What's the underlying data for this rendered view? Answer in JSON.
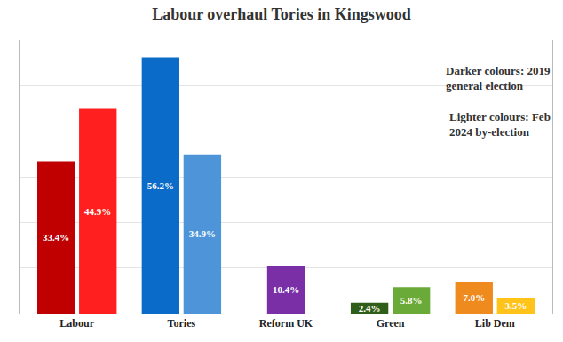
{
  "chart_data": {
    "type": "bar",
    "title": "Labour overhaul Tories in Kingswood",
    "categories": [
      "Labour",
      "Tories",
      "Reform UK",
      "Green",
      "Lib Dem"
    ],
    "series": [
      {
        "name": "Darker colours: 2019 general election",
        "values": [
          33.4,
          56.2,
          null,
          2.4,
          7.0
        ],
        "value_labels": [
          "33.4%",
          "56.2%",
          null,
          "2.4%",
          "7.0%"
        ],
        "colors": [
          "#c00000",
          "#0a6cc8",
          null,
          "#2e5e1a",
          "#ee8a1e"
        ]
      },
      {
        "name": "Lighter colours: Feb 2024 by-election",
        "values": [
          44.9,
          34.9,
          10.4,
          5.8,
          3.5
        ],
        "value_labels": [
          "44.9%",
          "34.9%",
          "10.4%",
          "5.8%",
          "3.5%"
        ],
        "colors": [
          "#ff1f1f",
          "#4d95d8",
          "#7a2fa6",
          "#6aaa38",
          "#ffc31a"
        ]
      }
    ],
    "ylim": [
      0,
      60
    ],
    "yticks": [
      0,
      10,
      20,
      30,
      40,
      50,
      60
    ],
    "grid": true,
    "data_labels": true,
    "tick_labels": "x",
    "legend": "upper right"
  }
}
